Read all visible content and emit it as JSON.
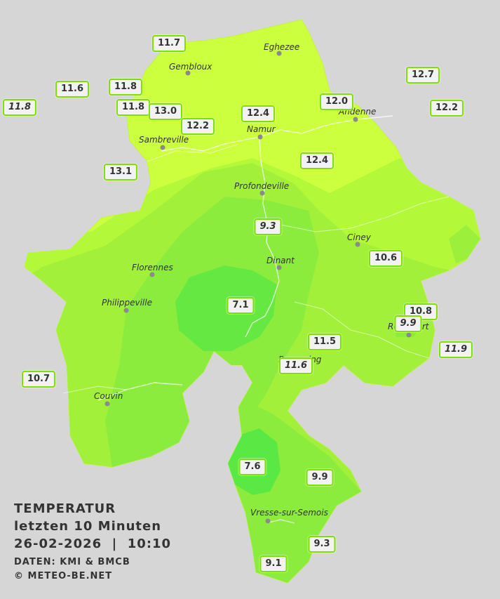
{
  "legend": {
    "title": "TEMPERATUR",
    "period": "letzten 10 Minuten",
    "datetime": "26-02-2026  |  10:10",
    "source": "DATEN: KMI & BMCB",
    "copyright": "© METEO-BE.NET"
  },
  "cities": [
    "Eghezee",
    "Gembloux",
    "Andenne",
    "Namur",
    "Sambreville",
    "Profondeville",
    "Ciney",
    "Dinant",
    "Florennes",
    "Philippeville",
    "Beauraing",
    "Couvin",
    "Vresse-sur-Semois",
    "Rochefort"
  ],
  "stations": [
    {
      "value": "11.7"
    },
    {
      "value": "11.6"
    },
    {
      "value": "11.8"
    },
    {
      "value": "11.8"
    },
    {
      "value": "11.8"
    },
    {
      "value": "13.0"
    },
    {
      "value": "12.2"
    },
    {
      "value": "12.4"
    },
    {
      "value": "12.0"
    },
    {
      "value": "12.7"
    },
    {
      "value": "12.2"
    },
    {
      "value": "13.1"
    },
    {
      "value": "12.4"
    },
    {
      "value": "9.3"
    },
    {
      "value": "10.6"
    },
    {
      "value": "7.1"
    },
    {
      "value": "10.8"
    },
    {
      "value": "9.9"
    },
    {
      "value": "11.5"
    },
    {
      "value": "11.9"
    },
    {
      "value": "11.6"
    },
    {
      "value": "10.7"
    },
    {
      "value": "7.6"
    },
    {
      "value": "9.9"
    },
    {
      "value": "9.3"
    },
    {
      "value": "9.1"
    }
  ],
  "colors": {
    "background": "#d6d6d6",
    "warmest_zone": "#ccff3d",
    "mid_zone": "#a6f33a",
    "cool_zone": "#7ef23c",
    "coldest_zone": "#5ae845",
    "station_border": "#7ee000"
  }
}
